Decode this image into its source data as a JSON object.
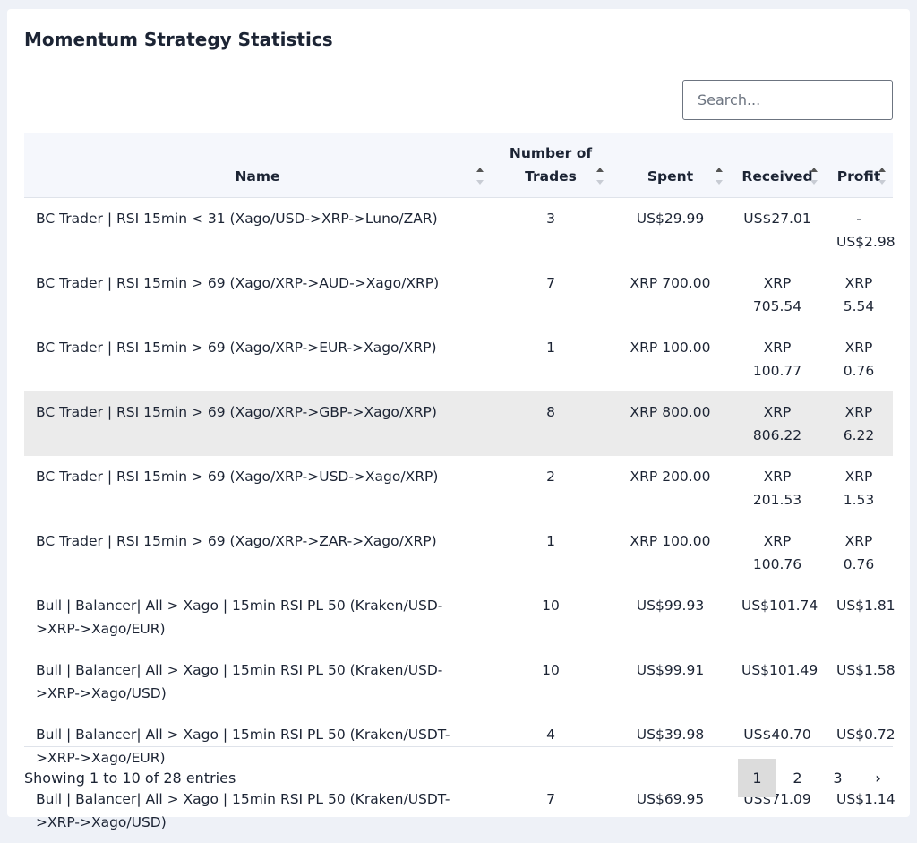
{
  "header": {
    "title": "Momentum Strategy Statistics",
    "search_placeholder": "Search..."
  },
  "table": {
    "columns": [
      "Name",
      "Number of Trades",
      "Spent",
      "Received",
      "Profit"
    ],
    "rows": [
      [
        "BC Trader | RSI 15min < 31 (Xago/USD->XRP->Luno/ZAR)",
        "3",
        "US$29.99",
        "US$27.01",
        "- US$2.98"
      ],
      [
        "BC Trader | RSI 15min > 69 (Xago/XRP->AUD->Xago/XRP)",
        "7",
        "XRP 700.00",
        "XRP 705.54",
        "XRP 5.54"
      ],
      [
        "BC Trader | RSI 15min > 69 (Xago/XRP->EUR->Xago/XRP)",
        "1",
        "XRP 100.00",
        "XRP 100.77",
        "XRP 0.76"
      ],
      [
        "BC Trader | RSI 15min > 69 (Xago/XRP->GBP->Xago/XRP)",
        "8",
        "XRP 800.00",
        "XRP 806.22",
        "XRP 6.22"
      ],
      [
        "BC Trader | RSI 15min > 69 (Xago/XRP->USD->Xago/XRP)",
        "2",
        "XRP 200.00",
        "XRP 201.53",
        "XRP 1.53"
      ],
      [
        "BC Trader | RSI 15min > 69 (Xago/XRP->ZAR->Xago/XRP)",
        "1",
        "XRP 100.00",
        "XRP 100.76",
        "XRP 0.76"
      ],
      [
        "Bull | Balancer| All > Xago | 15min RSI PL 50 (Kraken/USD->XRP->Xago/EUR)",
        "10",
        "US$99.93",
        "US$101.74",
        "US$1.81"
      ],
      [
        "Bull | Balancer| All > Xago | 15min RSI PL 50 (Kraken/USD->XRP->Xago/USD)",
        "10",
        "US$99.91",
        "US$101.49",
        "US$1.58"
      ],
      [
        "Bull | Balancer| All > Xago | 15min RSI PL 50 (Kraken/USDT->XRP->Xago/EUR)",
        "4",
        "US$39.98",
        "US$40.70",
        "US$0.72"
      ],
      [
        "Bull | Balancer| All > Xago | 15min RSI PL 50 (Kraken/USDT->XRP->Xago/USD)",
        "7",
        "US$69.95",
        "US$71.09",
        "US$1.14"
      ]
    ]
  },
  "footer": {
    "info": "Showing 1 to 10 of 28 entries",
    "pages": [
      "1",
      "2",
      "3",
      "›"
    ]
  }
}
